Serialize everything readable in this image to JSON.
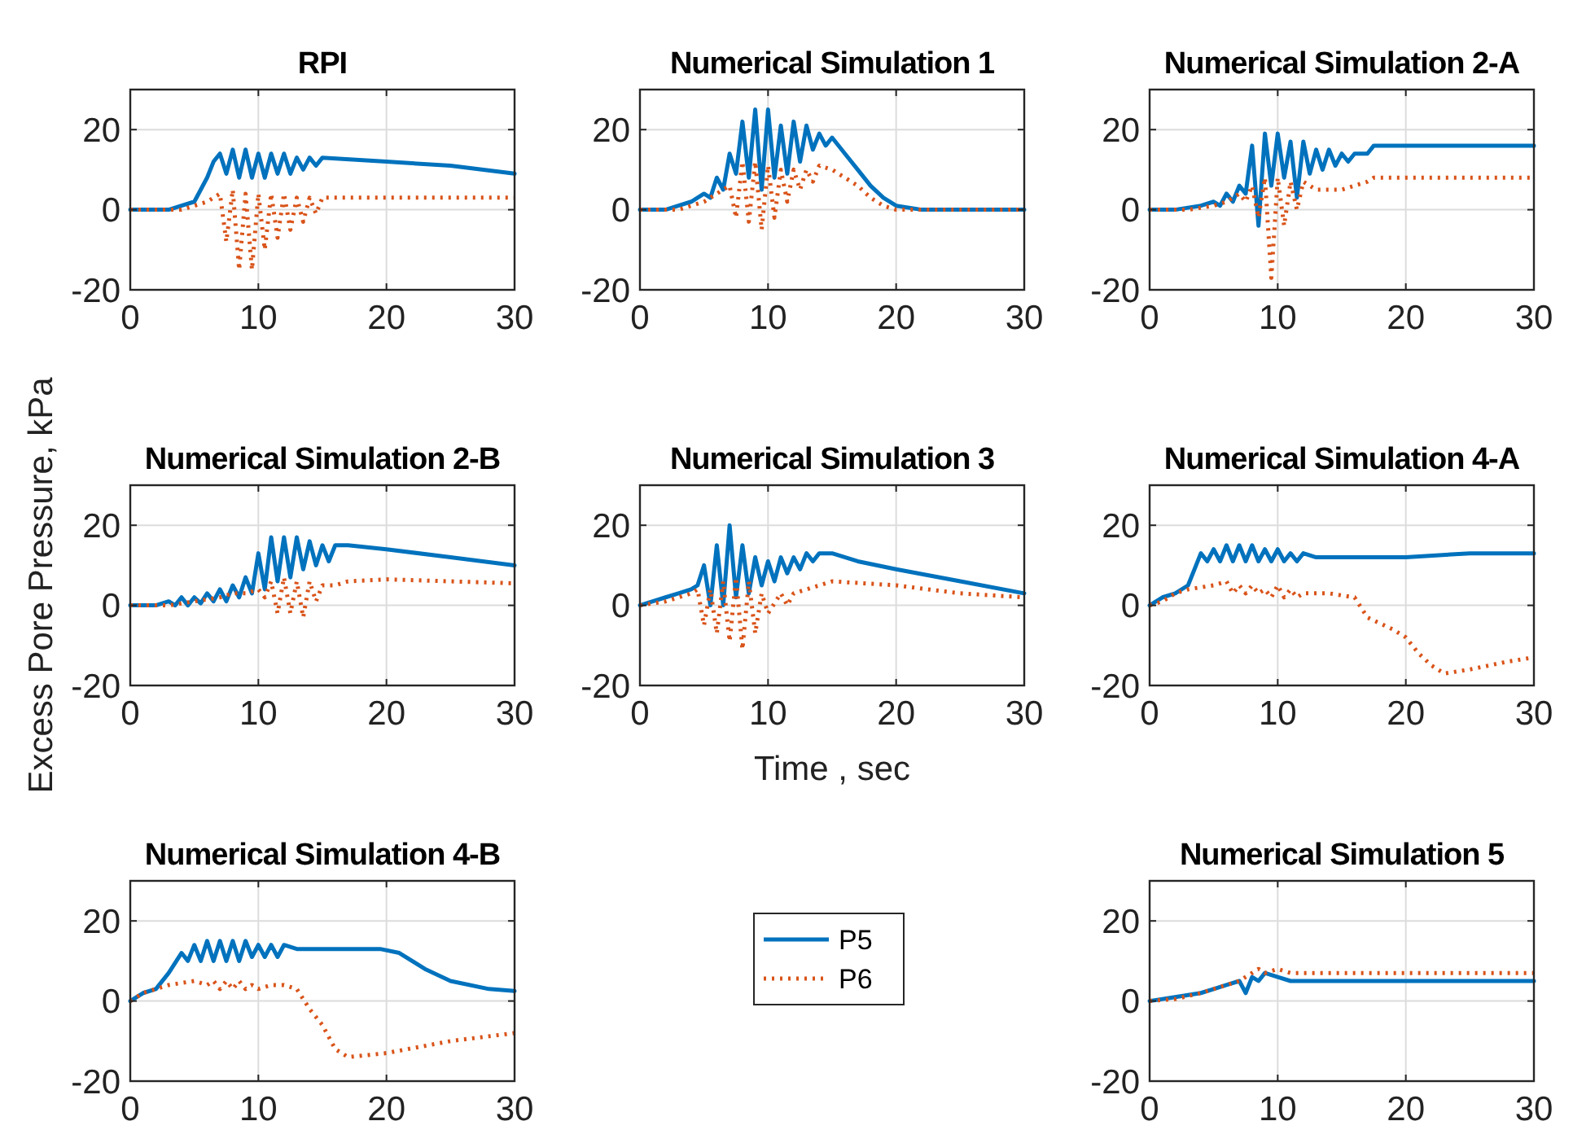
{
  "chart_data": [
    {
      "type": "line",
      "title": "RPI",
      "xlim": [
        0,
        30
      ],
      "ylim": [
        -20,
        30
      ],
      "xticks": [
        0,
        10,
        20,
        30
      ],
      "yticks": [
        -20,
        0,
        20
      ],
      "grid": true,
      "legend": false,
      "series": [
        {
          "color": "#0072bd",
          "line_style": "solid",
          "x": [
            0,
            3,
            4,
            5,
            5.5,
            6,
            6.5,
            7,
            7.5,
            8,
            8.5,
            9,
            9.5,
            10,
            10.5,
            11,
            11.5,
            12,
            12.5,
            13,
            13.5,
            14,
            14.5,
            15,
            20,
            25,
            30
          ],
          "values": [
            0,
            0,
            1,
            2,
            5,
            8,
            12,
            14,
            9,
            15,
            8,
            15,
            8,
            14,
            8,
            14,
            9,
            14,
            9,
            13,
            10,
            13,
            11,
            13,
            12,
            11,
            9
          ]
        },
        {
          "color": "#d95319",
          "line_style": "dotted",
          "x": [
            0,
            4,
            6,
            7,
            7.5,
            8,
            8.5,
            9,
            9.5,
            10,
            10.5,
            11,
            11.5,
            12,
            12.5,
            13,
            13.5,
            14,
            14.5,
            15,
            30
          ],
          "values": [
            0,
            0,
            2,
            4,
            -8,
            5,
            -15,
            4,
            -15,
            4,
            -10,
            4,
            -7,
            4,
            -5,
            3,
            -3,
            3,
            -1,
            3,
            3
          ]
        }
      ]
    },
    {
      "type": "line",
      "title": "Numerical Simulation 1",
      "xlim": [
        0,
        30
      ],
      "ylim": [
        -20,
        30
      ],
      "xticks": [
        0,
        10,
        20,
        30
      ],
      "yticks": [
        -20,
        0,
        20
      ],
      "grid": true,
      "legend": false,
      "series": [
        {
          "color": "#0072bd",
          "line_style": "solid",
          "x": [
            0,
            2,
            3,
            4,
            5,
            5.5,
            6,
            6.5,
            7,
            7.5,
            8,
            8.5,
            9,
            9.5,
            10,
            10.5,
            11,
            11.5,
            12,
            12.5,
            13,
            13.5,
            14,
            14.5,
            15,
            16,
            17,
            18,
            19,
            20,
            22,
            30
          ],
          "values": [
            0,
            0,
            1,
            2,
            4,
            3,
            8,
            5,
            14,
            9,
            22,
            8,
            25,
            5,
            25,
            8,
            21,
            9,
            22,
            12,
            21,
            15,
            19,
            16,
            18,
            14,
            10,
            6,
            3,
            1,
            0,
            0
          ]
        },
        {
          "color": "#d95319",
          "line_style": "dotted",
          "x": [
            0,
            3,
            5,
            6,
            7,
            7.5,
            8,
            8.5,
            9,
            9.5,
            10,
            10.5,
            11,
            11.5,
            12,
            12.5,
            13,
            13.5,
            14,
            15,
            16,
            17,
            18,
            19,
            20,
            30
          ],
          "values": [
            0,
            0,
            2,
            4,
            6,
            -2,
            12,
            -3,
            12,
            -5,
            11,
            -2,
            10,
            2,
            10,
            5,
            10,
            7,
            11,
            10,
            8,
            6,
            3,
            1,
            0,
            0
          ]
        }
      ]
    },
    {
      "type": "line",
      "title": "Numerical Simulation 2-A",
      "xlim": [
        0,
        30
      ],
      "ylim": [
        -20,
        30
      ],
      "xticks": [
        0,
        10,
        20,
        30
      ],
      "yticks": [
        -20,
        0,
        20
      ],
      "grid": true,
      "legend": false,
      "series": [
        {
          "color": "#0072bd",
          "line_style": "solid",
          "x": [
            0,
            2,
            3,
            4,
            5,
            5.5,
            6,
            6.5,
            7,
            7.5,
            8,
            8.5,
            9,
            9.5,
            10,
            10.5,
            11,
            11.5,
            12,
            12.5,
            13,
            13.5,
            14,
            14.5,
            15,
            15.5,
            16,
            17,
            17.5,
            18,
            30
          ],
          "values": [
            0,
            0,
            0.5,
            1,
            2,
            1,
            4,
            2,
            6,
            4,
            16,
            -4,
            19,
            6,
            19,
            8,
            17,
            3,
            17,
            9,
            15,
            10,
            15,
            11,
            14,
            12,
            14,
            14,
            16,
            16,
            16
          ]
        },
        {
          "color": "#d95319",
          "line_style": "dotted",
          "x": [
            0,
            3,
            5,
            6,
            7,
            7.5,
            8,
            8.5,
            9,
            9.5,
            10,
            10.5,
            11,
            11.5,
            12,
            13,
            14,
            15,
            16,
            17,
            17.5,
            30
          ],
          "values": [
            0,
            0,
            1,
            2,
            4,
            2,
            6,
            -2,
            8,
            -17,
            8,
            -4,
            7,
            0,
            7,
            5,
            5,
            5,
            6,
            7,
            8,
            8
          ]
        }
      ]
    },
    {
      "type": "line",
      "title": "Numerical Simulation 2-B",
      "ylabel": "Excess Pore Pressure, kPa",
      "xlim": [
        0,
        30
      ],
      "ylim": [
        -20,
        30
      ],
      "xticks": [
        0,
        10,
        20,
        30
      ],
      "yticks": [
        -20,
        0,
        20
      ],
      "grid": true,
      "legend": false,
      "series": [
        {
          "color": "#0072bd",
          "line_style": "solid",
          "x": [
            0,
            2,
            3,
            3.5,
            4,
            4.5,
            5,
            5.5,
            6,
            6.5,
            7,
            7.5,
            8,
            8.5,
            9,
            9.5,
            10,
            10.5,
            11,
            11.5,
            12,
            12.5,
            13,
            13.5,
            14,
            14.5,
            15,
            15.5,
            16,
            17,
            20,
            25,
            30
          ],
          "values": [
            0,
            0,
            1,
            0,
            2,
            0,
            2,
            0.5,
            3,
            1,
            4,
            1,
            5,
            2,
            7,
            3,
            13,
            4,
            17,
            6,
            17,
            7,
            17,
            9,
            16,
            10,
            15,
            11,
            15,
            15,
            14,
            12,
            10
          ]
        },
        {
          "color": "#d95319",
          "line_style": "dotted",
          "x": [
            0,
            3,
            5,
            7,
            8,
            9,
            10,
            10.5,
            11,
            11.5,
            12,
            12.5,
            13,
            13.5,
            14,
            14.5,
            15,
            16,
            17,
            20,
            30
          ],
          "values": [
            0,
            0,
            1,
            2,
            3,
            3,
            4,
            2,
            6,
            -2,
            7,
            -2,
            6,
            -3,
            6,
            1,
            5,
            5,
            6,
            6.5,
            5.5
          ]
        }
      ]
    },
    {
      "type": "line",
      "title": "Numerical Simulation 3",
      "xlabel": "Time , sec",
      "xlim": [
        0,
        30
      ],
      "ylim": [
        -20,
        30
      ],
      "xticks": [
        0,
        10,
        20,
        30
      ],
      "yticks": [
        -20,
        0,
        20
      ],
      "grid": true,
      "legend": false,
      "series": [
        {
          "color": "#0072bd",
          "line_style": "solid",
          "x": [
            0,
            1,
            2,
            3,
            4,
            4.5,
            5,
            5.5,
            6,
            6.5,
            7,
            7.5,
            8,
            8.5,
            9,
            9.5,
            10,
            10.5,
            11,
            11.5,
            12,
            12.5,
            13,
            13.5,
            14,
            15,
            17,
            20,
            25,
            30
          ],
          "values": [
            0,
            1,
            2,
            3,
            4,
            5,
            10,
            0,
            15,
            0,
            20,
            2,
            15,
            3,
            12,
            5,
            11,
            6,
            12,
            8,
            12,
            9,
            13,
            11,
            13,
            13,
            11,
            9,
            6,
            3
          ]
        },
        {
          "color": "#d95319",
          "line_style": "dotted",
          "x": [
            0,
            2,
            3,
            4,
            4.5,
            5,
            5.5,
            6,
            6.5,
            7,
            7.5,
            8,
            8.5,
            9,
            9.5,
            10,
            11,
            11.5,
            12,
            13,
            14,
            15,
            20,
            25,
            30
          ],
          "values": [
            0,
            1,
            2,
            3,
            4,
            -5,
            4,
            -7,
            6,
            -9,
            7,
            -11,
            6,
            -7,
            3,
            -2,
            3,
            0,
            3,
            4,
            5,
            6,
            5,
            3,
            2
          ]
        }
      ]
    },
    {
      "type": "line",
      "title": "Numerical Simulation 4-A",
      "xlim": [
        0,
        30
      ],
      "ylim": [
        -20,
        30
      ],
      "xticks": [
        0,
        10,
        20,
        30
      ],
      "yticks": [
        -20,
        0,
        20
      ],
      "grid": true,
      "legend": false,
      "series": [
        {
          "color": "#0072bd",
          "line_style": "solid",
          "x": [
            0,
            1,
            2,
            3,
            3.5,
            4,
            4.5,
            5,
            5.5,
            6,
            6.5,
            7,
            7.5,
            8,
            8.5,
            9,
            9.5,
            10,
            10.5,
            11,
            11.5,
            12,
            13,
            14,
            15,
            20,
            25,
            30
          ],
          "values": [
            0,
            2,
            3,
            5,
            9,
            13,
            11,
            14,
            11,
            15,
            11,
            15,
            11,
            15,
            11,
            14,
            11,
            14,
            11,
            13,
            11,
            13,
            12,
            12,
            12,
            12,
            13,
            13
          ]
        },
        {
          "color": "#d95319",
          "line_style": "dotted",
          "x": [
            0,
            1,
            2,
            3,
            5,
            6,
            6.5,
            7,
            7.5,
            8,
            8.5,
            9,
            9.5,
            10,
            10.5,
            11,
            11.5,
            12,
            14,
            16,
            17,
            19,
            20,
            21,
            22,
            23,
            25,
            28,
            30
          ],
          "values": [
            0,
            1,
            3,
            4,
            5,
            6,
            3,
            5,
            3,
            5,
            3,
            4,
            2,
            5,
            2,
            4,
            2,
            3,
            3,
            2,
            -3,
            -6,
            -8,
            -12,
            -15,
            -17,
            -16,
            -14,
            -13
          ]
        }
      ]
    },
    {
      "type": "line",
      "title": "Numerical Simulation 4-B",
      "xlim": [
        0,
        30
      ],
      "ylim": [
        -20,
        30
      ],
      "xticks": [
        0,
        10,
        20,
        30
      ],
      "yticks": [
        -20,
        0,
        20
      ],
      "grid": true,
      "legend": "right",
      "series": [
        {
          "name": "P5",
          "color": "#0072bd",
          "line_style": "solid",
          "x": [
            0,
            1,
            2,
            3,
            4,
            4.5,
            5,
            5.5,
            6,
            6.5,
            7,
            7.5,
            8,
            8.5,
            9,
            9.5,
            10,
            10.5,
            11,
            11.5,
            12,
            13,
            15,
            18,
            19.5,
            21,
            23,
            25,
            28,
            30
          ],
          "values": [
            0,
            2,
            3,
            7,
            12,
            10,
            14,
            10,
            15,
            10,
            15,
            10,
            15,
            10,
            15,
            11,
            14,
            11,
            14,
            11,
            14,
            13,
            13,
            13,
            13,
            12,
            8,
            5,
            3,
            2.5
          ]
        },
        {
          "name": "P6",
          "color": "#d95319",
          "line_style": "dotted",
          "x": [
            0,
            1,
            2,
            3,
            5,
            6,
            6.5,
            7,
            7.5,
            8,
            8.5,
            9,
            9.5,
            10,
            11,
            12,
            13,
            14,
            15,
            16,
            17,
            20,
            25,
            30
          ],
          "values": [
            0,
            2,
            3,
            4,
            5,
            4,
            5,
            3,
            5,
            3,
            5,
            3,
            4,
            3,
            4,
            4,
            3,
            -2,
            -6,
            -12,
            -14,
            -13,
            -10,
            -8
          ]
        }
      ]
    },
    {
      "type": "line",
      "title": "Numerical Simulation 5",
      "xlim": [
        0,
        30
      ],
      "ylim": [
        -20,
        30
      ],
      "xticks": [
        0,
        10,
        20,
        30
      ],
      "yticks": [
        -20,
        0,
        20
      ],
      "grid": true,
      "legend": false,
      "series": [
        {
          "color": "#0072bd",
          "line_style": "solid",
          "x": [
            0,
            2,
            4,
            5,
            6,
            7,
            7.5,
            8,
            8.5,
            9,
            10,
            11,
            12,
            30
          ],
          "values": [
            0,
            1,
            2,
            3,
            4,
            5,
            2,
            6,
            5,
            7,
            6,
            5,
            5,
            5
          ]
        },
        {
          "color": "#d95319",
          "line_style": "dotted",
          "x": [
            0,
            2,
            4,
            6,
            7,
            8,
            8.5,
            9,
            10,
            11,
            12,
            30
          ],
          "values": [
            0,
            0.5,
            2,
            4,
            5,
            7,
            8,
            7,
            8,
            7,
            7,
            7
          ]
        }
      ]
    }
  ]
}
